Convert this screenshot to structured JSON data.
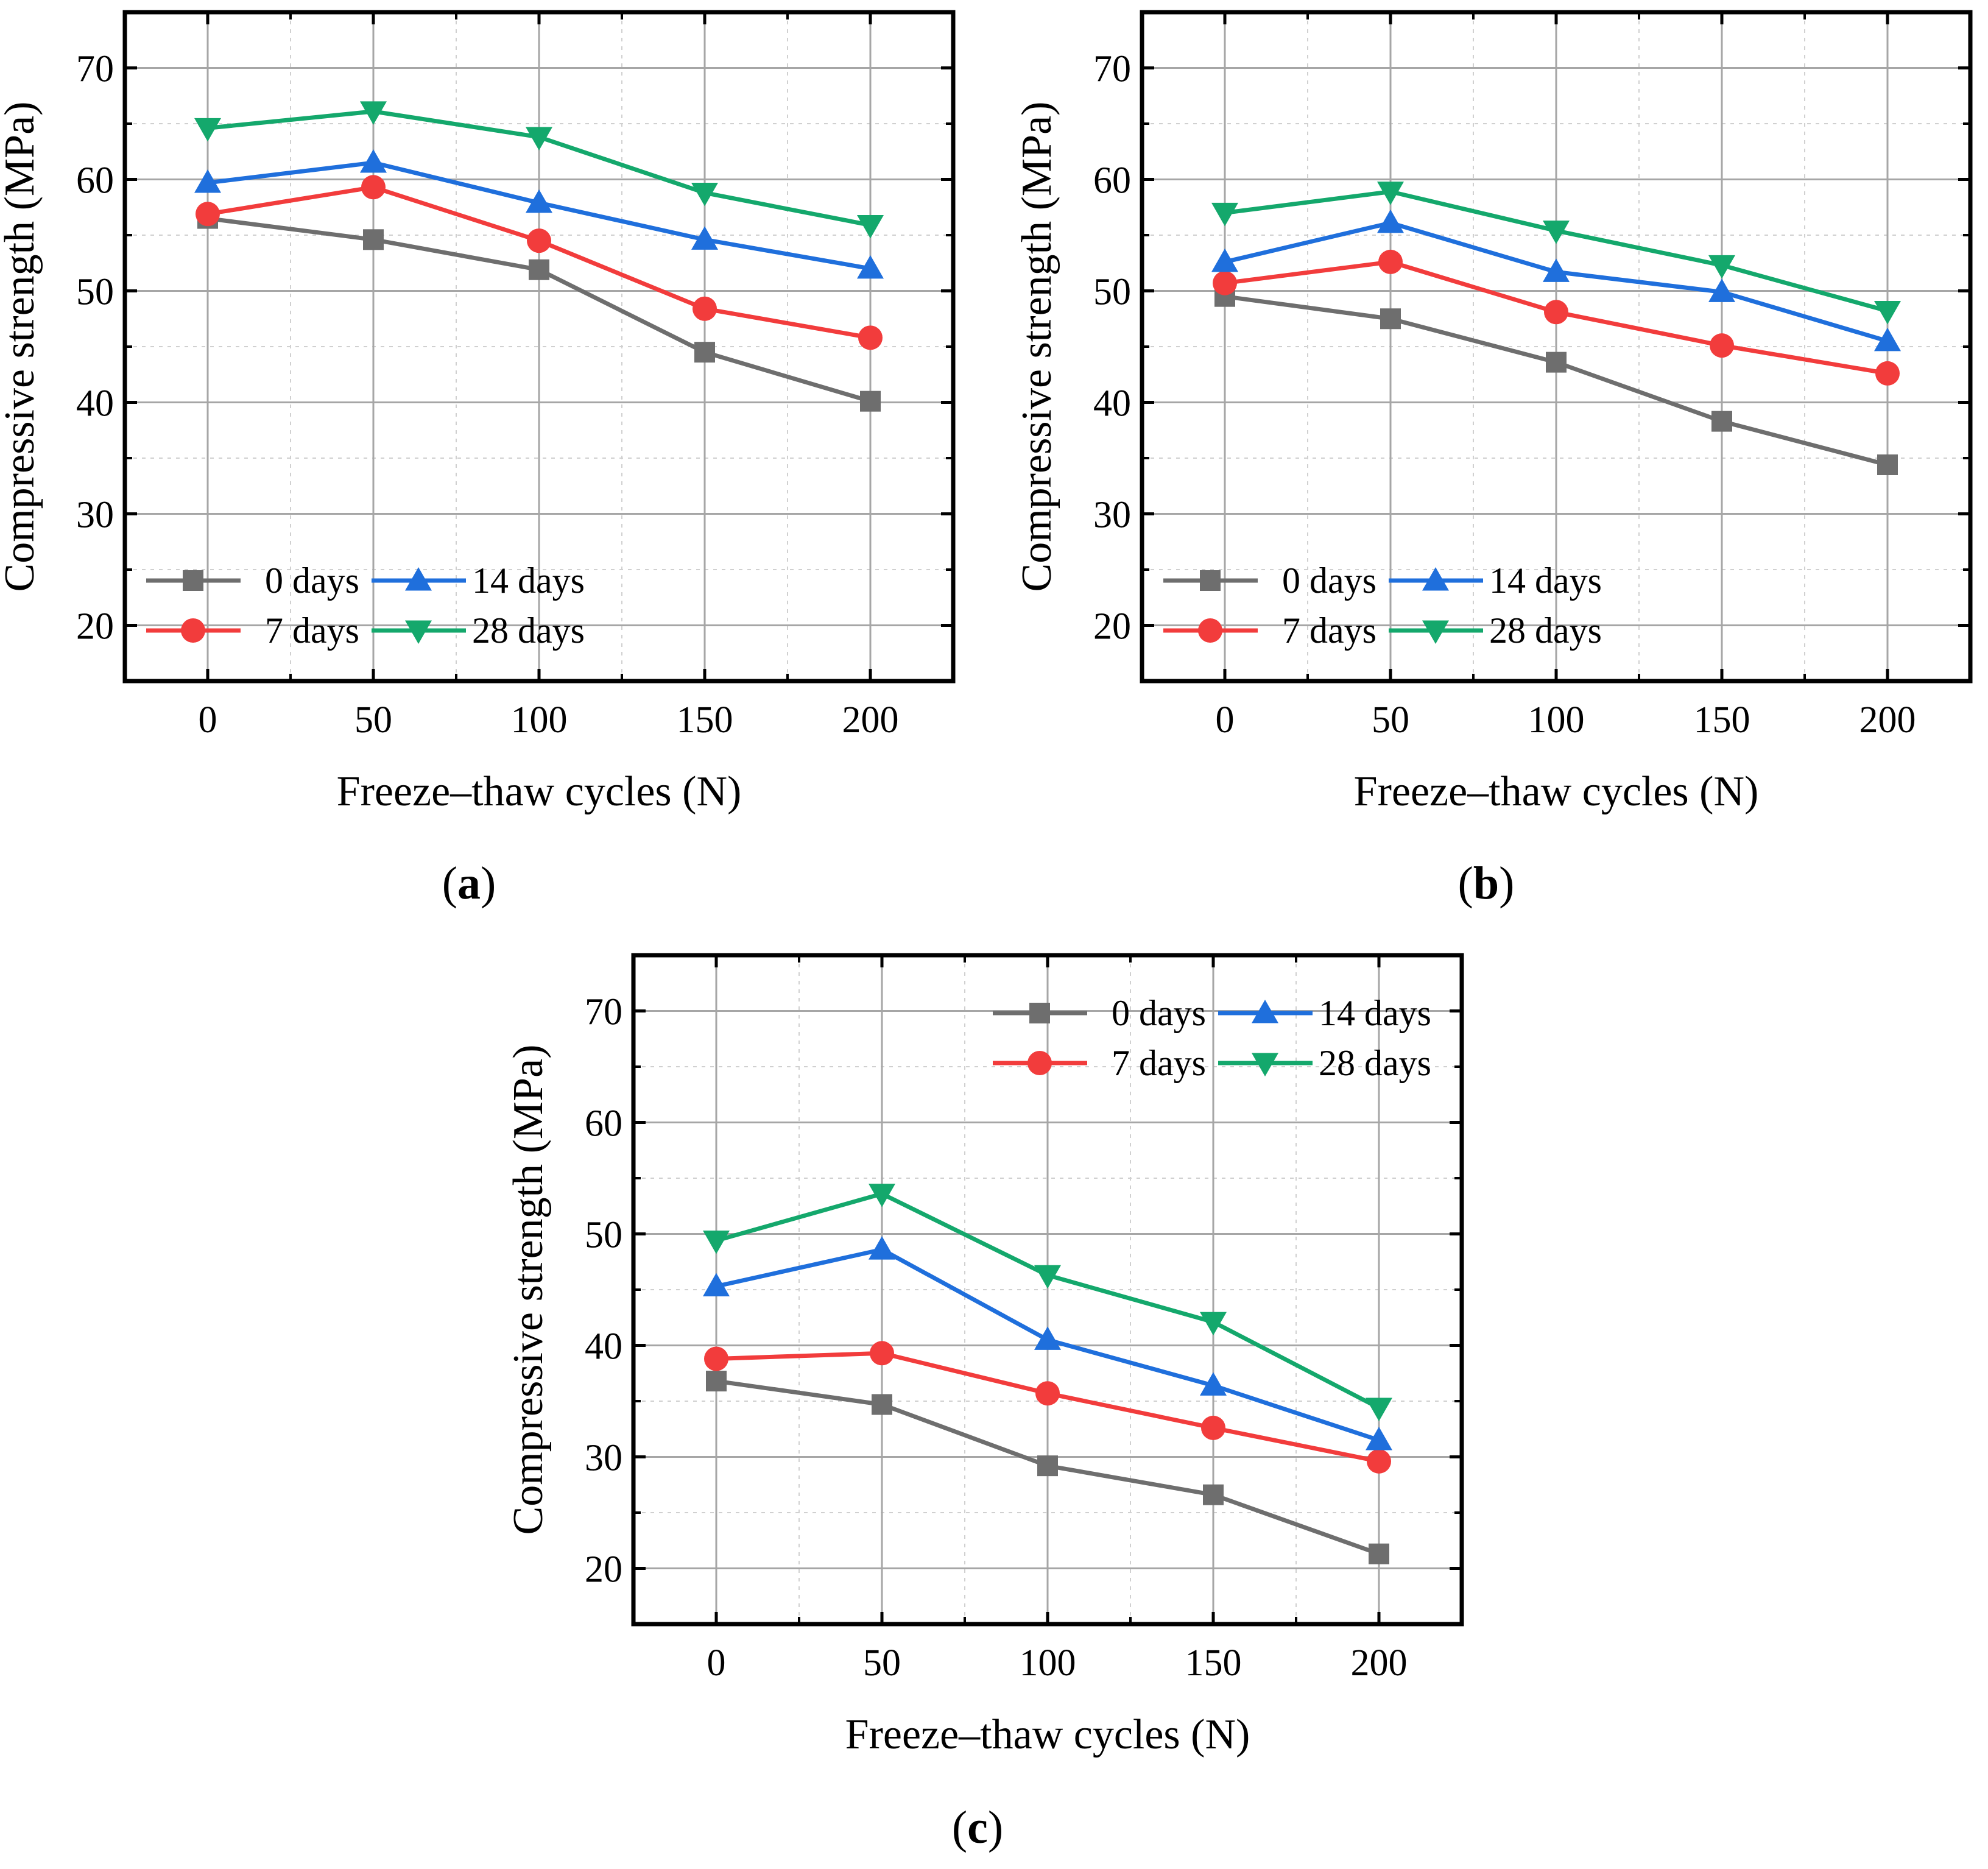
{
  "figure": {
    "panels": [
      "a",
      "b",
      "c"
    ]
  },
  "chart_data": [
    {
      "panel_label": "a",
      "type": "line",
      "xlabel": "Freeze–thaw cycles (N)",
      "ylabel": "Compressive strength (MPa)",
      "x": [
        0,
        50,
        100,
        150,
        200
      ],
      "xticks": [
        "0",
        "50",
        "100",
        "150",
        "200"
      ],
      "yticks": [
        "20",
        "30",
        "40",
        "50",
        "60",
        "70"
      ],
      "xlim": [
        -25,
        225
      ],
      "ylim": [
        15,
        75
      ],
      "grid": true,
      "legend_position": "bottom-left",
      "series": [
        {
          "name": "0 days",
          "marker": "square",
          "color": "#6e6e6e",
          "values": [
            56.5,
            54.6,
            51.9,
            44.5,
            40.1
          ]
        },
        {
          "name": "7 days",
          "marker": "circle",
          "color": "#f23c3c",
          "values": [
            56.9,
            59.3,
            54.5,
            48.4,
            45.8
          ]
        },
        {
          "name": "14 days",
          "marker": "triangle-up",
          "color": "#1f6fdc",
          "values": [
            59.7,
            61.5,
            57.9,
            54.6,
            52.0
          ]
        },
        {
          "name": "28 days",
          "marker": "triangle-down",
          "color": "#14a86c",
          "values": [
            64.6,
            66.1,
            63.8,
            58.8,
            55.9
          ]
        }
      ]
    },
    {
      "panel_label": "b",
      "type": "line",
      "xlabel": "Freeze–thaw cycles (N)",
      "ylabel": "Compressive strength (MPa)",
      "x": [
        0,
        50,
        100,
        150,
        200
      ],
      "xticks": [
        "0",
        "50",
        "100",
        "150",
        "200"
      ],
      "yticks": [
        "20",
        "30",
        "40",
        "50",
        "60",
        "70"
      ],
      "xlim": [
        -25,
        225
      ],
      "ylim": [
        15,
        75
      ],
      "grid": true,
      "legend_position": "bottom-left",
      "series": [
        {
          "name": "0 days",
          "marker": "square",
          "color": "#6e6e6e",
          "values": [
            49.5,
            47.5,
            43.6,
            38.3,
            34.4
          ]
        },
        {
          "name": "7 days",
          "marker": "circle",
          "color": "#f23c3c",
          "values": [
            50.7,
            52.6,
            48.1,
            45.1,
            42.6
          ]
        },
        {
          "name": "14 days",
          "marker": "triangle-up",
          "color": "#1f6fdc",
          "values": [
            52.6,
            56.1,
            51.7,
            49.9,
            45.5
          ]
        },
        {
          "name": "28 days",
          "marker": "triangle-down",
          "color": "#14a86c",
          "values": [
            57.0,
            58.9,
            55.4,
            52.3,
            48.2
          ]
        }
      ]
    },
    {
      "panel_label": "c",
      "type": "line",
      "xlabel": "Freeze–thaw cycles (N)",
      "ylabel": "Compressive strength (MPa)",
      "x": [
        0,
        50,
        100,
        150,
        200
      ],
      "xticks": [
        "0",
        "50",
        "100",
        "150",
        "200"
      ],
      "yticks": [
        "20",
        "30",
        "40",
        "50",
        "60",
        "70"
      ],
      "xlim": [
        -25,
        225
      ],
      "ylim": [
        15,
        75
      ],
      "grid": true,
      "legend_position": "top-right",
      "series": [
        {
          "name": "0 days",
          "marker": "square",
          "color": "#6e6e6e",
          "values": [
            36.8,
            34.7,
            29.2,
            26.6,
            21.3
          ]
        },
        {
          "name": "7 days",
          "marker": "circle",
          "color": "#f23c3c",
          "values": [
            38.8,
            39.3,
            35.7,
            32.6,
            29.6
          ]
        },
        {
          "name": "14 days",
          "marker": "triangle-up",
          "color": "#1f6fdc",
          "values": [
            45.3,
            48.6,
            40.5,
            36.4,
            31.5
          ]
        },
        {
          "name": "28 days",
          "marker": "triangle-down",
          "color": "#14a86c",
          "values": [
            49.4,
            53.6,
            46.3,
            42.1,
            34.4
          ]
        }
      ]
    }
  ]
}
